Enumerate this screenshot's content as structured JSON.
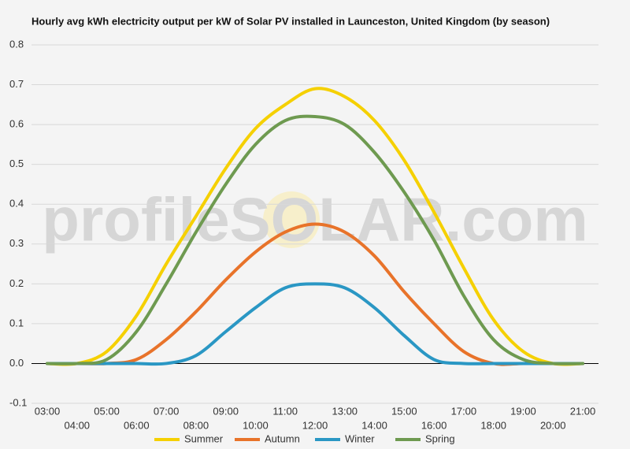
{
  "chart_data": {
    "type": "line",
    "title": "Hourly avg kWh electricity output per kW of Solar PV installed in Launceston, United Kingdom (by season)",
    "watermark": "profileSOLAR.com",
    "categories": [
      "03:00",
      "04:00",
      "05:00",
      "06:00",
      "07:00",
      "08:00",
      "09:00",
      "10:00",
      "11:00",
      "12:00",
      "13:00",
      "14:00",
      "15:00",
      "16:00",
      "17:00",
      "18:00",
      "19:00",
      "20:00",
      "21:00"
    ],
    "series": [
      {
        "name": "Summer",
        "color": "#f5d000",
        "values": [
          0,
          0,
          0.03,
          0.12,
          0.25,
          0.37,
          0.49,
          0.59,
          0.65,
          0.69,
          0.67,
          0.61,
          0.51,
          0.38,
          0.24,
          0.11,
          0.03,
          0,
          0
        ]
      },
      {
        "name": "Autumn",
        "color": "#e8732a",
        "values": [
          0,
          0,
          0,
          0.01,
          0.06,
          0.13,
          0.21,
          0.28,
          0.33,
          0.35,
          0.33,
          0.27,
          0.18,
          0.1,
          0.03,
          0,
          0,
          0,
          0
        ]
      },
      {
        "name": "Winter",
        "color": "#2a97c4",
        "values": [
          0,
          0,
          0,
          0,
          0,
          0.02,
          0.08,
          0.14,
          0.19,
          0.2,
          0.19,
          0.14,
          0.07,
          0.01,
          0,
          0,
          0,
          0,
          0
        ]
      },
      {
        "name": "Spring",
        "color": "#6e9a50",
        "values": [
          0,
          0,
          0.01,
          0.08,
          0.2,
          0.33,
          0.45,
          0.55,
          0.61,
          0.62,
          0.6,
          0.53,
          0.43,
          0.31,
          0.17,
          0.06,
          0.01,
          0,
          0
        ]
      }
    ],
    "ylim": [
      -0.1,
      0.8
    ],
    "yticks": [
      -0.1,
      {
        "value": 0,
        "label": "0.0"
      },
      0.1,
      0.2,
      0.3,
      0.4,
      0.5,
      0.6,
      0.7,
      0.8
    ],
    "grid": true
  }
}
